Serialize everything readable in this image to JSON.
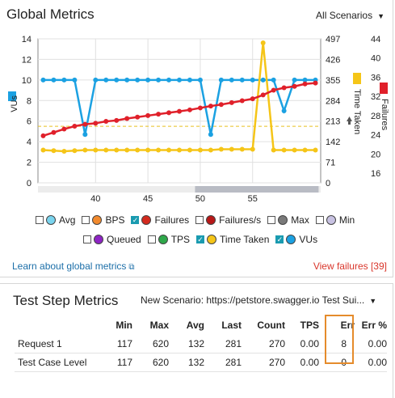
{
  "header": {
    "title": "Global Metrics",
    "scenario_label": "All Scenarios",
    "caret": "▼"
  },
  "axis_labels": {
    "left": "VUs",
    "right1": "Time Taken",
    "right2": "Failures"
  },
  "chart_data": {
    "type": "line",
    "x": [
      35,
      36,
      37,
      38,
      39,
      40,
      41,
      42,
      43,
      44,
      45,
      46,
      47,
      48,
      49,
      50,
      51,
      52,
      53,
      54,
      55,
      56,
      57,
      58,
      59,
      60,
      61
    ],
    "x_ticks": [
      40,
      45,
      50,
      55
    ],
    "xlim": [
      34.5,
      61.5
    ],
    "left_axis": {
      "label": "VUs",
      "range": [
        0,
        14
      ],
      "ticks": [
        0,
        2,
        4,
        6,
        8,
        10,
        12,
        14
      ]
    },
    "right_axis_1": {
      "label": "Time Taken",
      "range": [
        0,
        497
      ],
      "ticks": [
        0,
        71,
        142,
        213,
        284,
        355,
        426,
        497
      ]
    },
    "right_axis_2": {
      "label": "Failures",
      "range": [
        14,
        44
      ],
      "ticks": [
        16,
        20,
        24,
        28,
        32,
        36,
        40,
        44
      ]
    },
    "series": [
      {
        "name": "VUs",
        "axis": "left",
        "color": "#1ba1e2",
        "values": [
          10,
          10,
          10,
          10,
          4.7,
          10,
          10,
          10,
          10,
          10,
          10,
          10,
          10,
          10,
          10,
          10,
          4.7,
          10,
          10,
          10,
          10,
          10,
          10,
          7,
          10,
          10,
          10
        ]
      },
      {
        "name": "Time Taken",
        "axis": "right_axis_1",
        "color": "#f5c518",
        "values": [
          113,
          111,
          109,
          111,
          113,
          113,
          113,
          113,
          113,
          113,
          113,
          113,
          113,
          113,
          113,
          113,
          113,
          116,
          116,
          116,
          116,
          483,
          113,
          113,
          113,
          113,
          113
        ]
      },
      {
        "name": "Failures",
        "axis": "right_axis_2",
        "color": "#e0202a",
        "values": [
          23.8,
          24.5,
          25.2,
          25.8,
          26.2,
          26.4,
          26.8,
          27,
          27.4,
          27.7,
          28,
          28.3,
          28.6,
          28.9,
          29.2,
          29.6,
          30,
          30.3,
          30.7,
          31.1,
          31.5,
          32.3,
          33.3,
          33.8,
          34.1,
          34.6,
          34.8
        ]
      }
    ],
    "reference_line": {
      "axis": "right_axis_1",
      "value": 195,
      "color": "#e8c020"
    },
    "grid": true
  },
  "legend": [
    [
      {
        "label": "Avg",
        "checked": false,
        "color": "#7ad4ee"
      },
      {
        "label": "BPS",
        "checked": false,
        "color": "#f28a2e"
      },
      {
        "label": "Failures",
        "checked": true,
        "color": "#d42a1e"
      },
      {
        "label": "Failures/s",
        "checked": false,
        "color": "#b81818"
      },
      {
        "label": "Max",
        "checked": false,
        "color": "#7a7a7a"
      },
      {
        "label": "Min",
        "checked": false,
        "color": "#c8c2e2"
      }
    ],
    [
      {
        "label": "Queued",
        "checked": false,
        "color": "#8e24c4"
      },
      {
        "label": "TPS",
        "checked": false,
        "color": "#2ea84a"
      },
      {
        "label": "Time Taken",
        "checked": true,
        "color": "#f5c518"
      },
      {
        "label": "VUs",
        "checked": true,
        "color": "#1ba1e2"
      }
    ]
  ],
  "links": {
    "learn": "Learn about global metrics",
    "learn_icon": "external-link-icon",
    "view_failures": "View failures [39]"
  },
  "test_steps": {
    "title": "Test Step Metrics",
    "scenario_label": "New Scenario: https://petstore.swagger.io Test Sui...",
    "caret": "▼",
    "columns": [
      "",
      "Min",
      "Max",
      "Avg",
      "Last",
      "Count",
      "TPS",
      "Err",
      "Err %"
    ],
    "rows": [
      [
        "Request 1",
        "117",
        "620",
        "132",
        "281",
        "270",
        "0.00",
        "8",
        "0.00"
      ],
      [
        "Test Case Level",
        "117",
        "620",
        "132",
        "281",
        "270",
        "0.00",
        "0",
        "0.00"
      ]
    ],
    "highlight_color": "#e58b2b"
  }
}
